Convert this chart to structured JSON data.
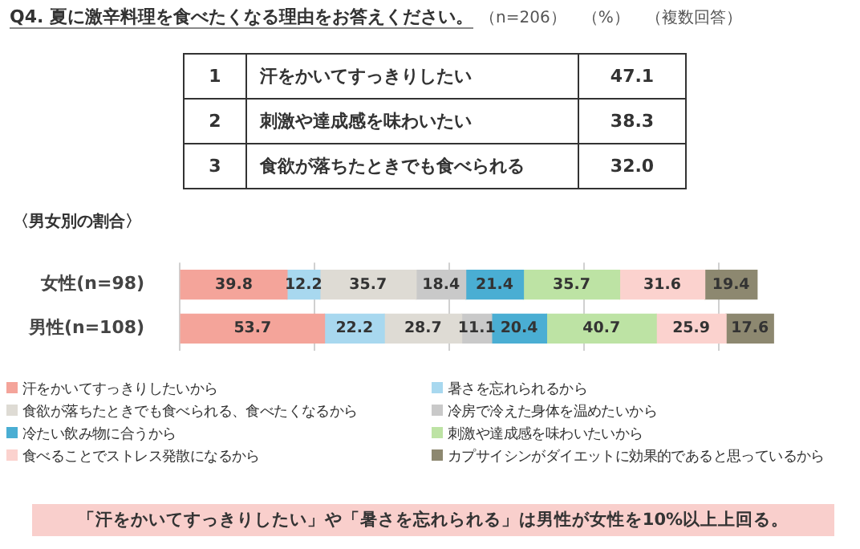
{
  "chart_data": {
    "type": "bar",
    "orientation": "horizontal",
    "stacked": true,
    "title": "Q4. 夏に激辛料理を食べたくなる理由をお答えください。",
    "subtitle": "（n=206）　（%）　（複数回答）",
    "annotations": [
      "1",
      "汗をかいてすっきりしたい",
      "47.1",
      "2",
      "刺激や達成感を味わいたい",
      "38.3",
      "3",
      "食欲が落ちたときでも食べられる",
      "32.0",
      "〈男女別の割合〉",
      "「汗をかいてすっきりしたい」や「暑さを忘れられる」は男性が女性を10%以上上回る。"
    ],
    "categories": [
      "女性(n=98)",
      "男性(n=108)"
    ],
    "series": [
      {
        "name": "汗をかいてすっきりしたいから",
        "color": "#f4a49a",
        "values": [
          39.8,
          53.7
        ]
      },
      {
        "name": "暑さを忘れられるから",
        "color": "#a8d8ef",
        "values": [
          12.2,
          22.2
        ]
      },
      {
        "name": "食欲が落ちたときでも食べられる、食べたくなるから",
        "color": "#dedbd4",
        "values": [
          35.7,
          28.7
        ]
      },
      {
        "name": "冷房で冷えた身体を温めたいから",
        "color": "#c9c9c9",
        "values": [
          18.4,
          11.1
        ]
      },
      {
        "name": "冷たい飲み物に合うから",
        "color": "#4aaed3",
        "values": [
          21.4,
          20.4
        ]
      },
      {
        "name": "刺激や達成感を味わいたいから",
        "color": "#bde3a4",
        "values": [
          35.7,
          40.7
        ]
      },
      {
        "name": "食べることでストレス発散になるから",
        "color": "#fbd2ce",
        "values": [
          31.6,
          25.9
        ]
      },
      {
        "name": "カプサイシンがダイエットに効果的であると思っているから",
        "color": "#8d8870",
        "values": [
          19.4,
          17.6
        ]
      }
    ],
    "xticks": [
      {
        "value": 0,
        "label": null
      },
      {
        "value": 50,
        "label": null
      },
      {
        "value": 100,
        "label": null
      },
      {
        "value": 150,
        "label": null
      },
      {
        "value": 200,
        "label": null
      }
    ],
    "tick_labels": "y",
    "grid": "x",
    "legend": "bottom",
    "data_labels": true
  }
}
